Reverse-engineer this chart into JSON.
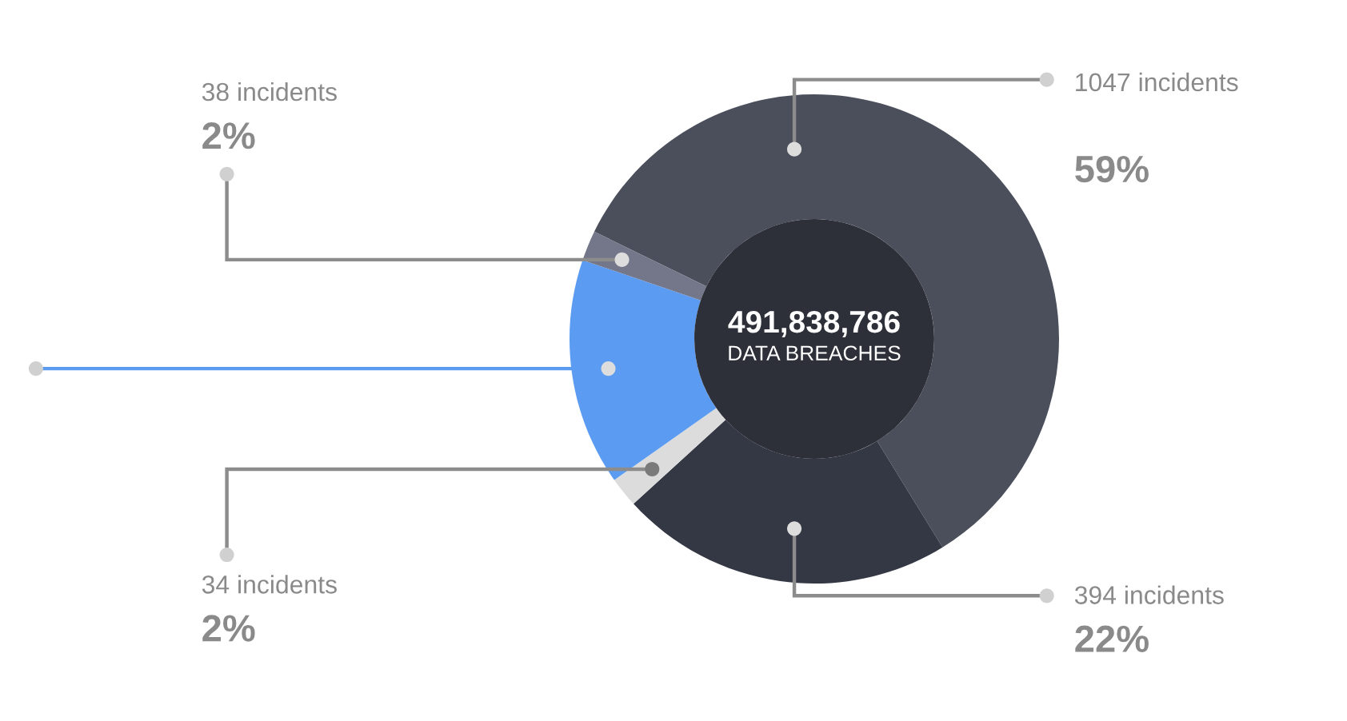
{
  "chart_data": {
    "type": "donut",
    "categories": [
      "1047 incidents",
      "394 incidents",
      "34 incidents",
      null,
      "38 incidents"
    ],
    "values": [
      59,
      22,
      2,
      15,
      2
    ],
    "colors": [
      "#4a4f5b",
      "#343844",
      "#dcdcdc",
      "#5b9cf2",
      "#747789"
    ],
    "value_labels": [
      "59%",
      "22%",
      "2%",
      null,
      "2%"
    ],
    "annotations": [
      "491,838,786",
      "DATA BREACHES"
    ]
  }
}
